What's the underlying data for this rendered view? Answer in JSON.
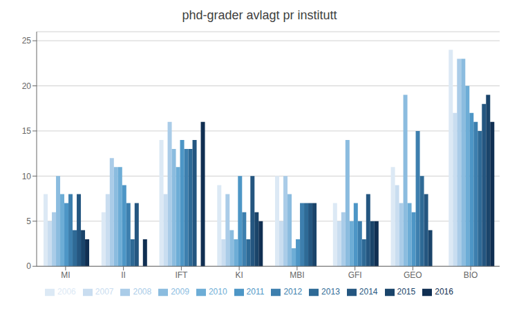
{
  "chart_data": {
    "type": "bar",
    "title": "phd-grader avlagt pr institutt",
    "categories": [
      "MI",
      "II",
      "IFT",
      "KI",
      "MBI",
      "GFI",
      "GEO",
      "BIO"
    ],
    "series": [
      {
        "name": "2006",
        "color": "#dce9f5",
        "values": [
          8,
          6,
          14,
          9,
          10,
          7,
          11,
          24
        ]
      },
      {
        "name": "2007",
        "color": "#c9ddf0",
        "values": [
          5,
          8,
          8,
          3,
          5,
          5,
          9,
          17
        ]
      },
      {
        "name": "2008",
        "color": "#aacce8",
        "values": [
          6,
          12,
          16,
          8,
          10,
          6,
          7,
          23
        ]
      },
      {
        "name": "2009",
        "color": "#8bbcdf",
        "values": [
          10,
          11,
          13,
          4,
          8,
          14,
          19,
          23
        ]
      },
      {
        "name": "2010",
        "color": "#6dadd6",
        "values": [
          8,
          11,
          11,
          3,
          2,
          5,
          7,
          20
        ]
      },
      {
        "name": "2011",
        "color": "#4d96c6",
        "values": [
          7,
          9,
          14,
          10,
          3,
          7,
          6,
          17
        ]
      },
      {
        "name": "2012",
        "color": "#3d7fae",
        "values": [
          8,
          7,
          13,
          6,
          7,
          5,
          15,
          16
        ]
      },
      {
        "name": "2013",
        "color": "#2e6a96",
        "values": [
          4,
          3,
          13,
          3,
          7,
          3,
          10,
          15
        ]
      },
      {
        "name": "2014",
        "color": "#245680",
        "values": [
          8,
          7,
          14,
          10,
          7,
          8,
          8,
          18
        ]
      },
      {
        "name": "2015",
        "color": "#1a446a",
        "values": [
          4,
          0,
          0,
          6,
          7,
          5,
          4,
          19
        ]
      },
      {
        "name": "2016",
        "color": "#102f52",
        "values": [
          3,
          3,
          16,
          5,
          0,
          5,
          0,
          16
        ]
      }
    ],
    "ylim": [
      0,
      26
    ],
    "yticks": [
      0,
      5,
      10,
      15,
      20,
      25
    ],
    "grid": true,
    "legend": "bottom"
  }
}
